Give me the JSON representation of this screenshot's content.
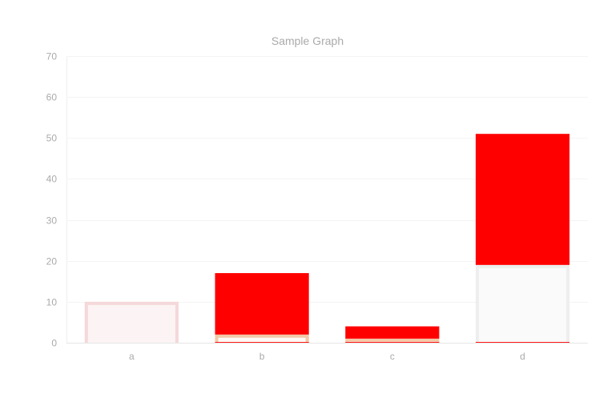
{
  "chart_data": {
    "type": "bar",
    "title": "Sample Graph",
    "xlabel": "",
    "ylabel": "",
    "categories": [
      "a",
      "b",
      "c",
      "d"
    ],
    "ylim": [
      0,
      70
    ],
    "yticks": [
      0,
      10,
      20,
      30,
      40,
      50,
      60,
      70
    ],
    "stacked": true,
    "grid": true,
    "legend": "none",
    "series": [
      {
        "values": [
          10,
          2,
          1,
          19
        ],
        "fill": "#fcf4f4",
        "stroke": "#f5d8da",
        "stroke_by_category": [
          "#f5d8da",
          "#f2c9a8",
          "#f2c9a8",
          "#eeeeee"
        ],
        "fill_by_category": [
          "#fcf4f4",
          "#fffaf5",
          "#fffaf5",
          "#fafafa"
        ]
      },
      {
        "values": [
          0,
          15,
          3,
          32
        ],
        "fill": "#ff0000",
        "stroke": "#ff0000"
      }
    ]
  }
}
